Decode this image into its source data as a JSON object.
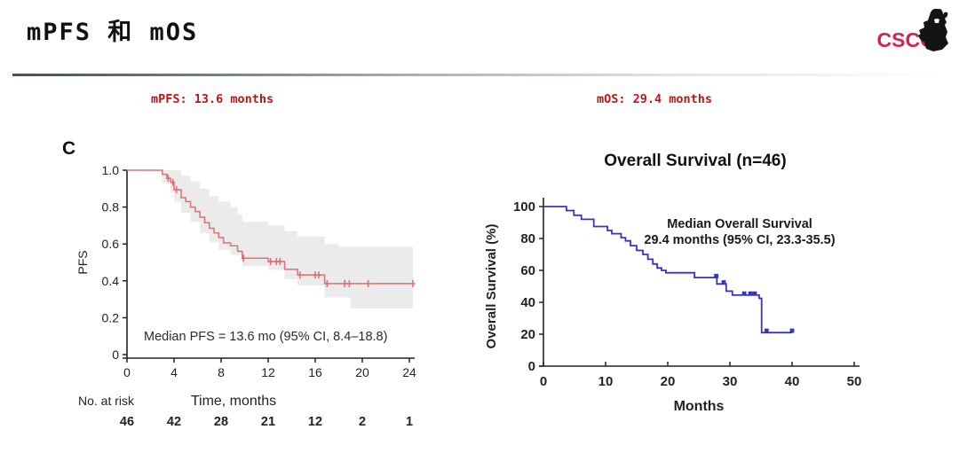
{
  "slide": {
    "title": "mPFS 和 mOS",
    "left_callout": "mPFS: 13.6 months",
    "right_callout": "mOS: 29.4 months",
    "logo_text": "CSCO",
    "colors": {
      "callout_red": "#c01414",
      "logo_red": "#d6204e",
      "pfs_curve": "#e07070",
      "pfs_ci_band": "#ebebeb",
      "os_curve": "#3434cd",
      "divider_dark": "#435062"
    }
  },
  "chart_data": [
    {
      "type": "line",
      "subtype": "kaplan_meier_step",
      "panel_label": "C",
      "title": "",
      "ylabel": "PFS",
      "xlabel": "Time, months",
      "annotation": "Median PFS = 13.6 mo (95% CI, 8.4–18.8)",
      "xlim": [
        0,
        24
      ],
      "ylim": [
        0,
        1
      ],
      "grid": false,
      "legend": "none",
      "x_ticks": [
        0,
        4,
        8,
        12,
        16,
        20,
        24
      ],
      "y_ticks": [
        1.0,
        0.8,
        0.6,
        0.4,
        0.2,
        0
      ],
      "y_tick_labels": [
        "1.0",
        "0.8",
        "0.6",
        "0.4",
        "0.2",
        "0"
      ],
      "curve_color": "#e07070",
      "ci_color": "#ebebeb",
      "censor_style": "plus",
      "steps": [
        [
          0,
          1.0
        ],
        [
          3.0,
          1.0
        ],
        [
          3.0,
          0.978
        ],
        [
          3.4,
          0.978
        ],
        [
          3.4,
          0.956
        ],
        [
          3.7,
          0.956
        ],
        [
          3.7,
          0.935
        ],
        [
          4.0,
          0.935
        ],
        [
          4.0,
          0.894
        ],
        [
          4.6,
          0.894
        ],
        [
          4.6,
          0.851
        ],
        [
          5.0,
          0.851
        ],
        [
          5.0,
          0.83
        ],
        [
          5.4,
          0.83
        ],
        [
          5.4,
          0.8
        ],
        [
          5.8,
          0.8
        ],
        [
          5.8,
          0.776
        ],
        [
          6.2,
          0.776
        ],
        [
          6.2,
          0.745
        ],
        [
          6.6,
          0.745
        ],
        [
          6.6,
          0.715
        ],
        [
          7.0,
          0.715
        ],
        [
          7.0,
          0.685
        ],
        [
          7.4,
          0.685
        ],
        [
          7.4,
          0.66
        ],
        [
          7.8,
          0.66
        ],
        [
          7.8,
          0.635
        ],
        [
          8.2,
          0.635
        ],
        [
          8.2,
          0.606
        ],
        [
          8.8,
          0.606
        ],
        [
          8.8,
          0.59
        ],
        [
          9.4,
          0.59
        ],
        [
          9.4,
          0.56
        ],
        [
          9.8,
          0.56
        ],
        [
          9.8,
          0.523
        ],
        [
          12.0,
          0.523
        ],
        [
          12.0,
          0.505
        ],
        [
          13.4,
          0.505
        ],
        [
          13.4,
          0.463
        ],
        [
          14.5,
          0.463
        ],
        [
          14.5,
          0.432
        ],
        [
          16.8,
          0.432
        ],
        [
          16.8,
          0.385
        ],
        [
          24.3,
          0.385
        ]
      ],
      "censor_marks": [
        [
          3.5,
          0.956
        ],
        [
          3.9,
          0.935
        ],
        [
          4.2,
          0.894
        ],
        [
          9.9,
          0.523
        ],
        [
          12.2,
          0.505
        ],
        [
          12.7,
          0.505
        ],
        [
          13.0,
          0.505
        ],
        [
          14.7,
          0.432
        ],
        [
          16.0,
          0.432
        ],
        [
          16.3,
          0.432
        ],
        [
          17.0,
          0.385
        ],
        [
          18.5,
          0.385
        ],
        [
          18.9,
          0.385
        ],
        [
          20.5,
          0.385
        ],
        [
          24.3,
          0.385
        ]
      ],
      "ci_upper": [
        [
          3.0,
          1.0
        ],
        [
          4.6,
          1.0
        ],
        [
          4.6,
          0.97
        ],
        [
          5.4,
          0.97
        ],
        [
          5.4,
          0.94
        ],
        [
          6.2,
          0.94
        ],
        [
          6.2,
          0.9
        ],
        [
          7.0,
          0.9
        ],
        [
          7.0,
          0.86
        ],
        [
          7.8,
          0.86
        ],
        [
          7.8,
          0.83
        ],
        [
          8.8,
          0.83
        ],
        [
          8.8,
          0.8
        ],
        [
          9.4,
          0.8
        ],
        [
          9.4,
          0.76
        ],
        [
          9.8,
          0.76
        ],
        [
          9.8,
          0.72
        ],
        [
          12.0,
          0.72
        ],
        [
          12.0,
          0.7
        ],
        [
          13.4,
          0.7
        ],
        [
          13.4,
          0.67
        ],
        [
          14.5,
          0.67
        ],
        [
          14.5,
          0.64
        ],
        [
          16.8,
          0.64
        ],
        [
          16.8,
          0.6
        ],
        [
          18.0,
          0.6
        ],
        [
          18.0,
          0.585
        ],
        [
          24.3,
          0.585
        ]
      ],
      "ci_lower": [
        [
          3.0,
          1.0
        ],
        [
          3.0,
          0.93
        ],
        [
          3.7,
          0.93
        ],
        [
          3.7,
          0.88
        ],
        [
          4.0,
          0.88
        ],
        [
          4.0,
          0.83
        ],
        [
          4.6,
          0.83
        ],
        [
          4.6,
          0.77
        ],
        [
          5.4,
          0.77
        ],
        [
          5.4,
          0.72
        ],
        [
          6.2,
          0.72
        ],
        [
          6.2,
          0.66
        ],
        [
          7.0,
          0.66
        ],
        [
          7.0,
          0.61
        ],
        [
          7.8,
          0.61
        ],
        [
          7.8,
          0.57
        ],
        [
          8.8,
          0.57
        ],
        [
          8.8,
          0.54
        ],
        [
          9.8,
          0.54
        ],
        [
          9.8,
          0.48
        ],
        [
          12.0,
          0.48
        ],
        [
          12.0,
          0.46
        ],
        [
          13.4,
          0.46
        ],
        [
          13.4,
          0.41
        ],
        [
          14.5,
          0.41
        ],
        [
          14.5,
          0.375
        ],
        [
          16.8,
          0.375
        ],
        [
          16.8,
          0.31
        ],
        [
          19.0,
          0.31
        ],
        [
          19.0,
          0.25
        ],
        [
          24.3,
          0.25
        ]
      ],
      "risk_table": {
        "label": "No. at risk",
        "values": [
          "46",
          "42",
          "28",
          "21",
          "12",
          "2",
          "1"
        ]
      }
    },
    {
      "type": "line",
      "subtype": "kaplan_meier_step",
      "panel_label": "",
      "title": "Overall Survival (n=46)",
      "ylabel": "Overall Survival (%)",
      "xlabel": "Months",
      "annotation_lines": [
        "Median Overall Survival",
        "29.4 months (95% CI, 23.3-35.5)"
      ],
      "xlim": [
        0,
        50
      ],
      "ylim": [
        0,
        100
      ],
      "grid": false,
      "legend": "none",
      "x_ticks": [
        0,
        10,
        20,
        30,
        40,
        50
      ],
      "y_ticks": [
        100,
        80,
        60,
        40,
        20,
        0
      ],
      "y_tick_labels": [
        "100",
        "80",
        "60",
        "40",
        "20",
        "0"
      ],
      "curve_color": "#3434cd",
      "censor_style": "square",
      "steps": [
        [
          0,
          100
        ],
        [
          3.7,
          100
        ],
        [
          3.7,
          97.5
        ],
        [
          4.9,
          97.5
        ],
        [
          4.9,
          94.5
        ],
        [
          6.1,
          94.5
        ],
        [
          6.1,
          92
        ],
        [
          8.1,
          92
        ],
        [
          8.1,
          87.5
        ],
        [
          10.3,
          87.5
        ],
        [
          10.3,
          85
        ],
        [
          11.0,
          85
        ],
        [
          11.0,
          83
        ],
        [
          12.5,
          83
        ],
        [
          12.5,
          80.5
        ],
        [
          13.2,
          80.5
        ],
        [
          13.2,
          78.5
        ],
        [
          14.0,
          78.5
        ],
        [
          14.0,
          75.5
        ],
        [
          15.0,
          75.5
        ],
        [
          15.0,
          72.5
        ],
        [
          16.0,
          72.5
        ],
        [
          16.0,
          70
        ],
        [
          16.8,
          70
        ],
        [
          16.8,
          67
        ],
        [
          17.6,
          67
        ],
        [
          17.6,
          64
        ],
        [
          18.3,
          64
        ],
        [
          18.3,
          61.5
        ],
        [
          19.0,
          61.5
        ],
        [
          19.0,
          60
        ],
        [
          19.7,
          60
        ],
        [
          19.7,
          58.5
        ],
        [
          24.3,
          58.5
        ],
        [
          24.3,
          55.5
        ],
        [
          27.9,
          55.5
        ],
        [
          27.9,
          51.5
        ],
        [
          29.4,
          51.5
        ],
        [
          29.4,
          47
        ],
        [
          30.4,
          47
        ],
        [
          30.4,
          44.5
        ],
        [
          34.7,
          44.5
        ],
        [
          34.7,
          42.5
        ],
        [
          35.1,
          42.5
        ],
        [
          35.1,
          21
        ],
        [
          40,
          21
        ]
      ],
      "censor_marks": [
        [
          27.8,
          56.5
        ],
        [
          29.0,
          52.5
        ],
        [
          32.3,
          45.5
        ],
        [
          33.3,
          45.5
        ],
        [
          34.0,
          45.5
        ],
        [
          35.9,
          22.2
        ],
        [
          40,
          22.2
        ]
      ]
    }
  ]
}
